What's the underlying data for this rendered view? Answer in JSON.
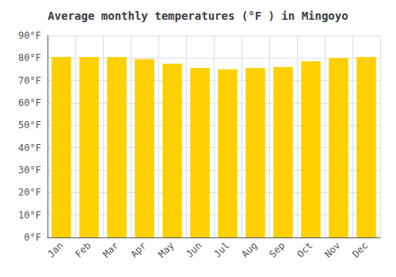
{
  "chart_data": {
    "type": "bar",
    "title": "Average monthly temperatures (°F ) in Mingoyo",
    "categories": [
      "Jan",
      "Feb",
      "Mar",
      "Apr",
      "May",
      "Jun",
      "Jul",
      "Aug",
      "Sep",
      "Oct",
      "Nov",
      "Dec"
    ],
    "values": [
      80.5,
      80.5,
      80.5,
      79.5,
      77.5,
      75.5,
      75.0,
      75.5,
      76.0,
      78.5,
      80.0,
      80.5
    ],
    "color": "#FFD000",
    "ylim": [
      0,
      90
    ],
    "yticks": [
      {
        "value": 0,
        "label": "0°F"
      },
      {
        "value": 10,
        "label": "10°F"
      },
      {
        "value": 20,
        "label": "20°F"
      },
      {
        "value": 30,
        "label": "30°F"
      },
      {
        "value": 40,
        "label": "40°F"
      },
      {
        "value": 50,
        "label": "50°F"
      },
      {
        "value": 60,
        "label": "60°F"
      },
      {
        "value": 70,
        "label": "70°F"
      },
      {
        "value": 80,
        "label": "80°F"
      },
      {
        "value": 90,
        "label": "90°F"
      }
    ],
    "grid": true
  }
}
